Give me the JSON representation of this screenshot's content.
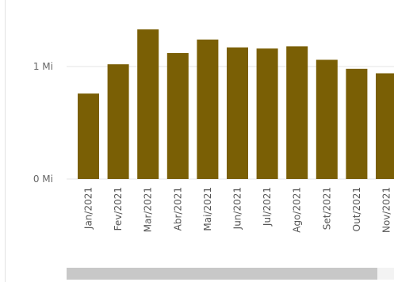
{
  "chart_data": {
    "type": "bar",
    "categories": [
      "Jan/2021",
      "Fev/2021",
      "Mar/2021",
      "Abr/2021",
      "Mai/2021",
      "Jun/2021",
      "Jul/2021",
      "Ago/2021",
      "Set/2021",
      "Out/2021",
      "Nov/2021"
    ],
    "values": [
      760000,
      1020000,
      1330000,
      1120000,
      1240000,
      1170000,
      1160000,
      1180000,
      1060000,
      980000,
      940000
    ],
    "y_ticks": [
      {
        "value": 0,
        "label": "0 Mi"
      },
      {
        "value": 1000000,
        "label": "1 Mi"
      }
    ],
    "ylim": [
      0,
      1400000
    ],
    "title": "",
    "xlabel": "",
    "ylabel": "",
    "grid": true,
    "bar_color": "#7a5f05",
    "gridline_color": "#e6e6e6"
  }
}
